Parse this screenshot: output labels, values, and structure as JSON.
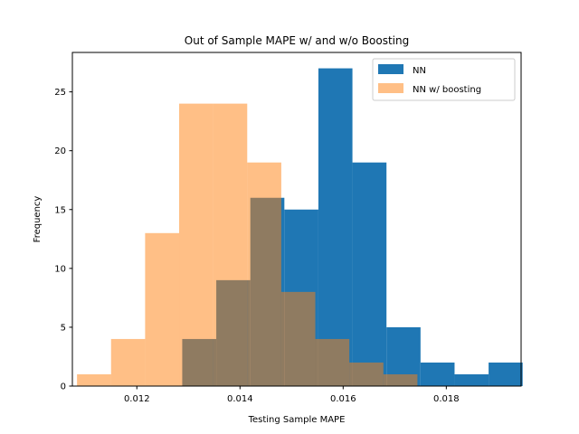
{
  "chart_data": {
    "type": "bar",
    "title": "Out of Sample MAPE w/ and w/o Boosting",
    "xlabel": "Testing Sample MAPE",
    "ylabel": "Frequency",
    "xlim": [
      0.01075,
      0.01945
    ],
    "ylim": [
      0,
      28.35
    ],
    "x_ticks": [
      0.012,
      0.014,
      0.016,
      0.018
    ],
    "x_tick_labels": [
      "0.012",
      "0.014",
      "0.016",
      "0.018"
    ],
    "y_ticks": [
      0,
      5,
      10,
      15,
      20,
      25
    ],
    "y_tick_labels": [
      "0",
      "5",
      "10",
      "15",
      "20",
      "25"
    ],
    "legend_position": "top-right",
    "series": [
      {
        "name": "NN",
        "color": "#1f77b4",
        "alpha": 1.0,
        "bin_edges": [
          0.01288,
          0.01354,
          0.0142,
          0.01486,
          0.01552,
          0.01618,
          0.01684,
          0.0175,
          0.01816,
          0.01882,
          0.01948
        ],
        "counts": [
          4,
          9,
          16,
          15,
          27,
          19,
          5,
          2,
          1,
          2
        ]
      },
      {
        "name": "NN w/ boosting",
        "color": "#ff7f0e",
        "alpha": 0.5,
        "bin_edges": [
          0.01084,
          0.0115,
          0.01216,
          0.01282,
          0.01348,
          0.01414,
          0.0148,
          0.01546,
          0.01612,
          0.01678,
          0.01744
        ],
        "counts": [
          1,
          4,
          13,
          24,
          24,
          19,
          8,
          4,
          2,
          1
        ]
      }
    ]
  }
}
